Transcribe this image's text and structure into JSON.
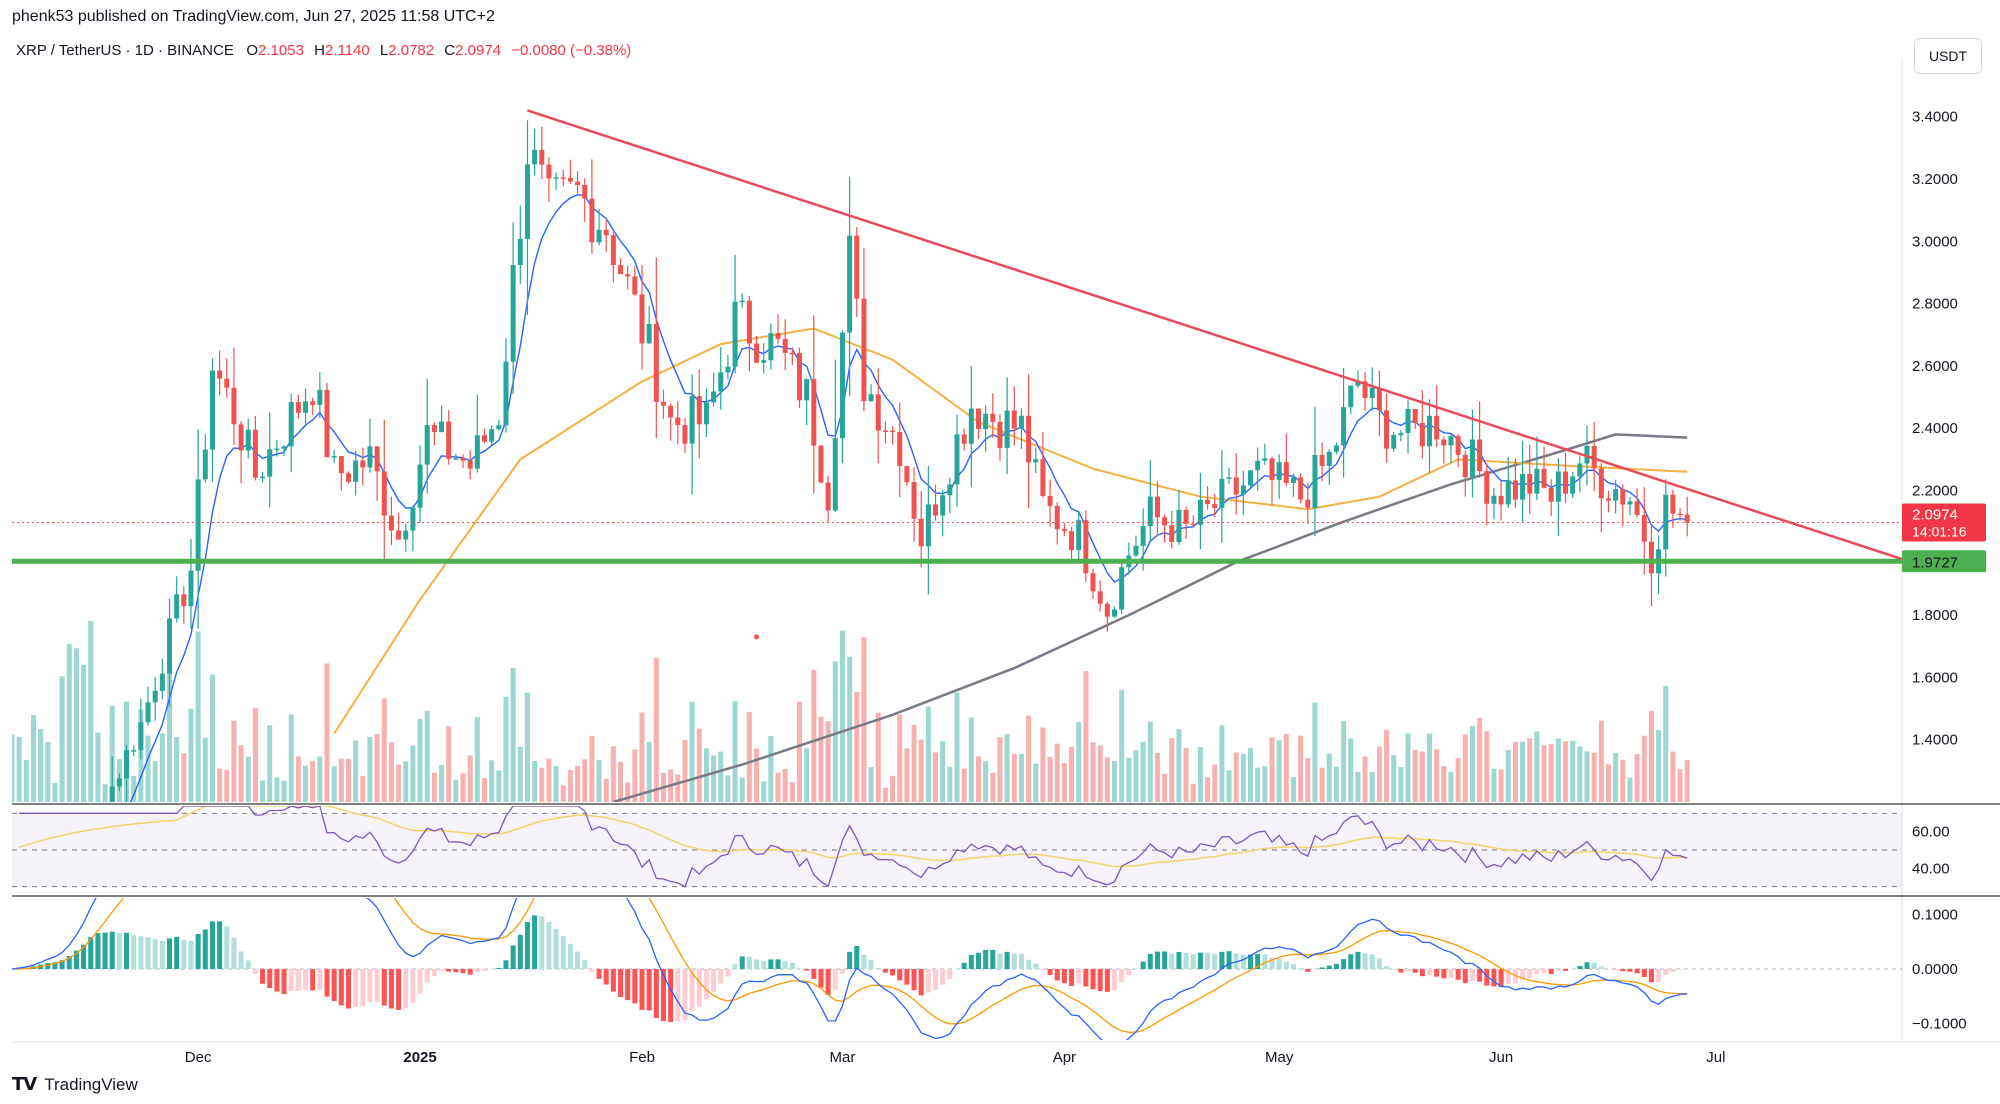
{
  "header": {
    "publisher": "phenk53 published on TradingView.com, Jun 27, 2025 11:58 UTC+2",
    "symbol": "XRP / TetherUS · 1D · BINANCE",
    "open_label": "O",
    "open": "2.1053",
    "high_label": "H",
    "high": "2.1140",
    "low_label": "L",
    "low": "2.0782",
    "close_label": "C",
    "close": "2.0974",
    "change": "−0.0080 (−0.38%)",
    "currency": "USDT"
  },
  "footer": {
    "brand": "TradingView"
  },
  "colors": {
    "up": "#26a69a",
    "down": "#ef5350",
    "trendline": "#e84a5a",
    "support": "#4caf50",
    "ma50": "#f5b041",
    "ma200": "#787b86",
    "ema": "#2962ff",
    "rsi": "#7e57c2",
    "rsi_ma": "#f0d56a"
  },
  "chart_data": {
    "type": "candlestick",
    "price_axis": {
      "ticks": [
        "3.4000",
        "3.2000",
        "3.0000",
        "2.8000",
        "2.6000",
        "2.4000",
        "2.2000",
        "1.8000",
        "1.6000",
        "1.4000"
      ],
      "ylim": [
        1.2,
        3.55
      ]
    },
    "x_axis": {
      "labels": [
        "Dec",
        "2025",
        "Feb",
        "Mar",
        "Apr",
        "May",
        "Jun",
        "Jul"
      ],
      "start": "2024-11-05",
      "end": "2025-07-27"
    },
    "last_price": {
      "value": 2.0974,
      "label": "2.0974",
      "countdown": "14:01:16"
    },
    "support": {
      "value": 1.9727,
      "label": "1.9727"
    },
    "trendline": [
      {
        "date": "2025-01-16",
        "price": 3.42
      },
      {
        "date": "2025-07-27",
        "price": 1.98
      }
    ],
    "annotation_dot": {
      "date": "2025-02-17",
      "price": 1.73
    },
    "anchors": [
      [
        "2024-11-05",
        0.5
      ],
      [
        "2024-11-12",
        0.65
      ],
      [
        "2024-11-16",
        1.1
      ],
      [
        "2024-11-23",
        1.45
      ],
      [
        "2024-11-30",
        1.95
      ],
      [
        "2024-12-03",
        2.6
      ],
      [
        "2024-12-06",
        2.45
      ],
      [
        "2024-12-09",
        2.25
      ],
      [
        "2024-12-13",
        2.4
      ],
      [
        "2024-12-17",
        2.55
      ],
      [
        "2024-12-20",
        2.25
      ],
      [
        "2024-12-25",
        2.3
      ],
      [
        "2024-12-29",
        2.05
      ],
      [
        "2025-01-02",
        2.38
      ],
      [
        "2025-01-08",
        2.28
      ],
      [
        "2025-01-12",
        2.45
      ],
      [
        "2025-01-16",
        3.3
      ],
      [
        "2025-01-19",
        3.1
      ],
      [
        "2025-01-23",
        3.15
      ],
      [
        "2025-01-27",
        3.05
      ],
      [
        "2025-02-02",
        2.65
      ],
      [
        "2025-02-05",
        2.42
      ],
      [
        "2025-02-10",
        2.42
      ],
      [
        "2025-02-14",
        2.75
      ],
      [
        "2025-02-20",
        2.65
      ],
      [
        "2025-02-24",
        2.5
      ],
      [
        "2025-02-27",
        2.2
      ],
      [
        "2025-03-02",
        2.95
      ],
      [
        "2025-03-04",
        2.55
      ],
      [
        "2025-03-09",
        2.35
      ],
      [
        "2025-03-12",
        2.05
      ],
      [
        "2025-03-16",
        2.3
      ],
      [
        "2025-03-19",
        2.48
      ],
      [
        "2025-03-23",
        2.42
      ],
      [
        "2025-03-26",
        2.4
      ],
      [
        "2025-03-29",
        2.15
      ],
      [
        "2025-04-03",
        2.05
      ],
      [
        "2025-04-07",
        1.82
      ],
      [
        "2025-04-10",
        2.0
      ],
      [
        "2025-04-13",
        2.12
      ],
      [
        "2025-04-18",
        2.07
      ],
      [
        "2025-04-22",
        2.15
      ],
      [
        "2025-04-28",
        2.25
      ],
      [
        "2025-05-04",
        2.18
      ],
      [
        "2025-05-08",
        2.3
      ],
      [
        "2025-05-12",
        2.55
      ],
      [
        "2025-05-15",
        2.42
      ],
      [
        "2025-05-19",
        2.38
      ],
      [
        "2025-05-23",
        2.42
      ],
      [
        "2025-05-27",
        2.32
      ],
      [
        "2025-05-31",
        2.2
      ],
      [
        "2025-06-05",
        2.22
      ],
      [
        "2025-06-08",
        2.18
      ],
      [
        "2025-06-12",
        2.3
      ],
      [
        "2025-06-16",
        2.22
      ],
      [
        "2025-06-19",
        2.18
      ],
      [
        "2025-06-22",
        2.0
      ],
      [
        "2025-06-24",
        2.15
      ],
      [
        "2025-06-27",
        2.0974
      ]
    ],
    "moving_averages": {
      "ema_short": "blue",
      "ma_50": [
        [
          "2024-12-20",
          1.42
        ],
        [
          "2025-01-01",
          1.85
        ],
        [
          "2025-01-15",
          2.3
        ],
        [
          "2025-02-01",
          2.55
        ],
        [
          "2025-02-12",
          2.67
        ],
        [
          "2025-02-25",
          2.72
        ],
        [
          "2025-03-08",
          2.62
        ],
        [
          "2025-03-20",
          2.42
        ],
        [
          "2025-04-05",
          2.27
        ],
        [
          "2025-04-20",
          2.18
        ],
        [
          "2025-05-05",
          2.14
        ],
        [
          "2025-05-15",
          2.18
        ],
        [
          "2025-05-26",
          2.3
        ],
        [
          "2025-06-10",
          2.28
        ],
        [
          "2025-06-27",
          2.26
        ]
      ],
      "ma_200": [
        [
          "2025-01-28",
          1.2
        ],
        [
          "2025-02-15",
          1.32
        ],
        [
          "2025-03-08",
          1.48
        ],
        [
          "2025-03-25",
          1.63
        ],
        [
          "2025-04-10",
          1.8
        ],
        [
          "2025-04-25",
          1.97
        ],
        [
          "2025-05-10",
          2.1
        ],
        [
          "2025-05-25",
          2.22
        ],
        [
          "2025-06-10",
          2.33
        ],
        [
          "2025-06-17",
          2.38
        ],
        [
          "2025-06-27",
          2.37
        ]
      ]
    },
    "rsi": {
      "ticks": [
        "60.00",
        "40.00"
      ],
      "ylim": [
        26,
        74
      ],
      "bands": [
        70,
        50,
        30
      ],
      "last": 43
    },
    "macd": {
      "ticks": [
        "0.1000",
        "0.0000",
        "−0.1000"
      ],
      "ylim": [
        -0.13,
        0.13
      ]
    }
  }
}
